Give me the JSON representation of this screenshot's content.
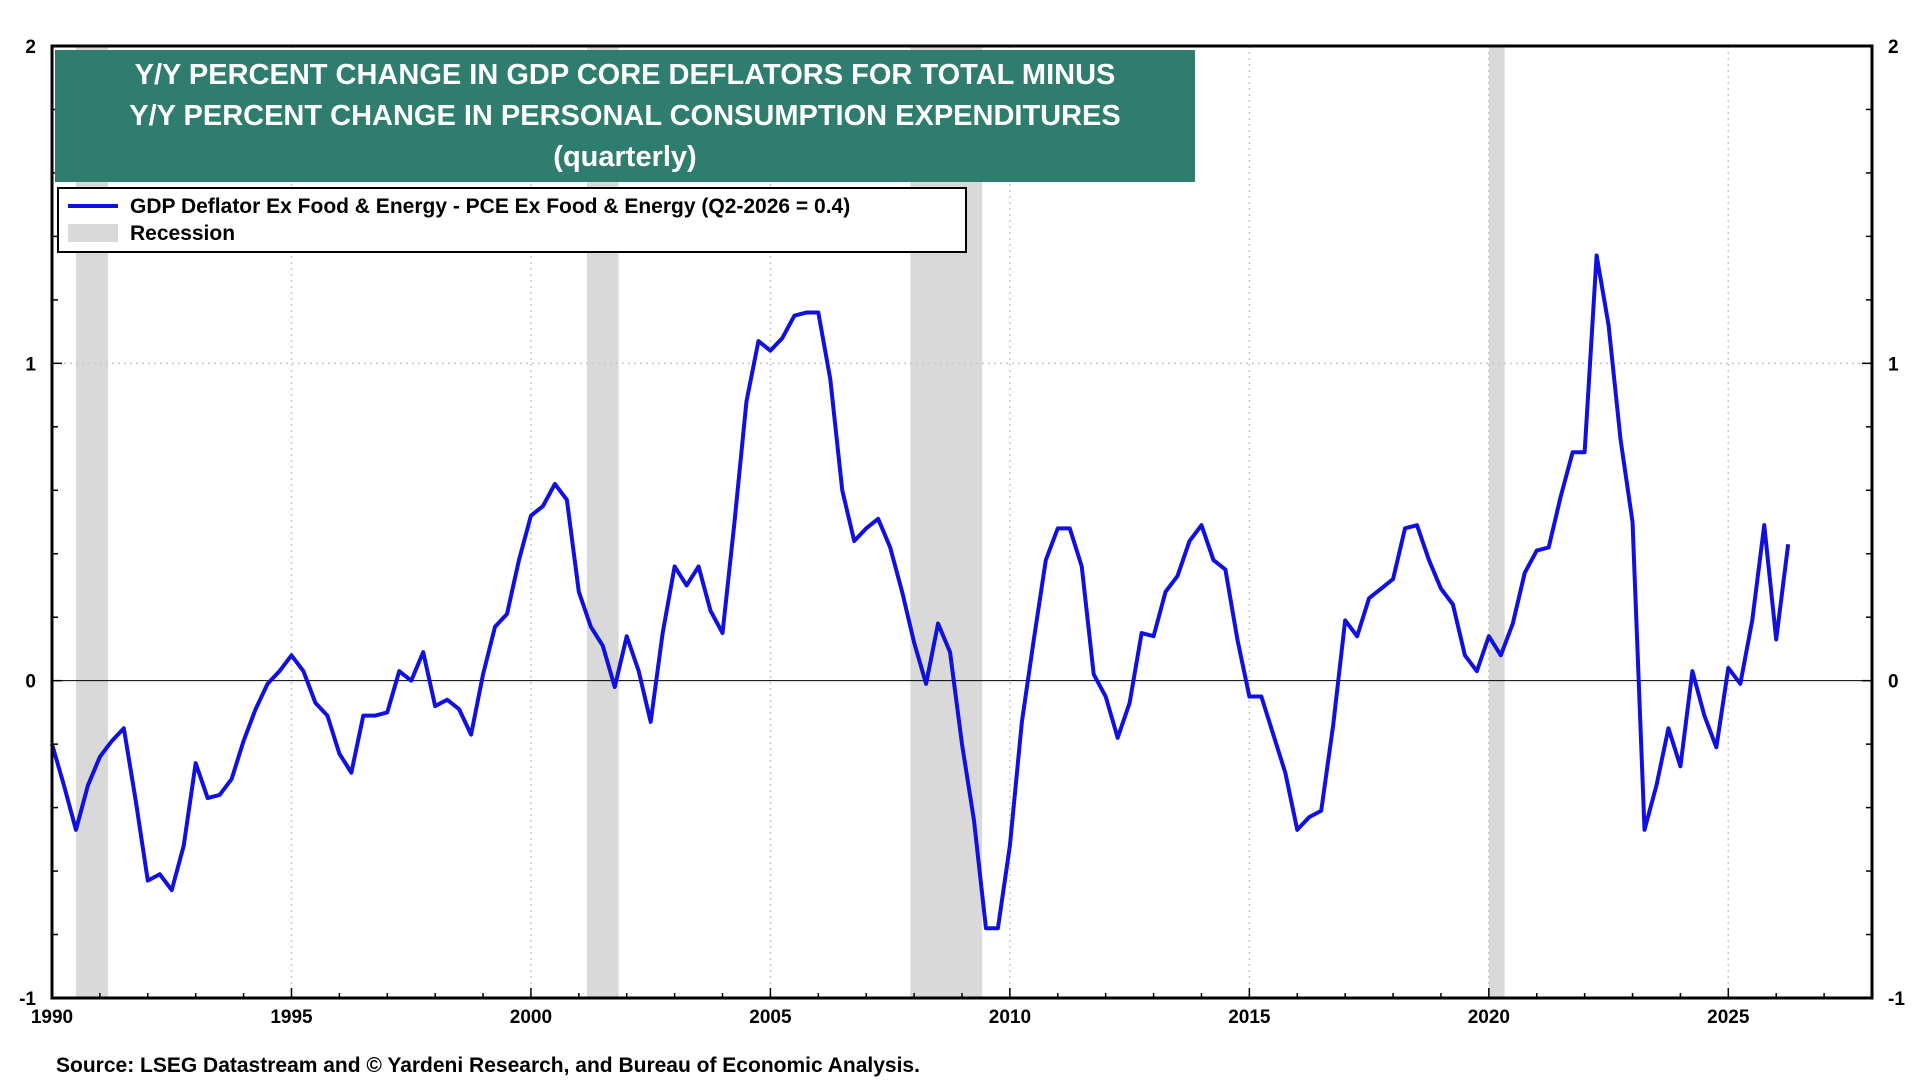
{
  "colors": {
    "title_bg": "#2e7d6f",
    "title_text": "#ffffff",
    "series_line": "#1010e0",
    "recession_fill": "#d9d9d9",
    "grid": "#c8c8c8",
    "zero_line": "#000000",
    "frame": "#000000"
  },
  "title": {
    "line1": "Y/Y PERCENT CHANGE IN GDP CORE DEFLATORS FOR TOTAL MINUS",
    "line2": "Y/Y PERCENT CHANGE IN PERSONAL CONSUMPTION EXPENDITURES",
    "line3": "(quarterly)"
  },
  "legend": {
    "series_label": "GDP Deflator Ex Food & Energy - PCE Ex Food & Energy (Q2-2026 = 0.4)",
    "recession_label": "Recession"
  },
  "source": "Source: LSEG Datastream and © Yardeni Research, and Bureau of Economic Analysis.",
  "chart_data": {
    "type": "line",
    "xlim": [
      1990.0,
      2028.0
    ],
    "ylim": [
      -1,
      2
    ],
    "x_ticks": [
      1990,
      1995,
      2000,
      2005,
      2010,
      2015,
      2020,
      2025
    ],
    "y_ticks_left": [
      "2",
      "1",
      "0",
      "-1"
    ],
    "y_ticks_right": [
      "2",
      "1",
      "0",
      "-1"
    ],
    "y_tick_values": [
      2,
      1,
      0,
      -1
    ],
    "grid": true,
    "legend_position": "top-left",
    "recessions": [
      [
        1990.5,
        1991.17
      ],
      [
        2001.17,
        2001.83
      ],
      [
        2007.92,
        2009.42
      ],
      [
        2020.0,
        2020.33
      ]
    ],
    "series": [
      {
        "name": "GDP Deflator Ex Food & Energy - PCE Ex Food & Energy (Q2-2026 = 0.4)",
        "points": [
          [
            1990.0,
            -0.2
          ],
          [
            1990.25,
            -0.33
          ],
          [
            1990.5,
            -0.47
          ],
          [
            1990.75,
            -0.33
          ],
          [
            1991.0,
            -0.24
          ],
          [
            1991.25,
            -0.19
          ],
          [
            1991.5,
            -0.15
          ],
          [
            1991.75,
            -0.38
          ],
          [
            1992.0,
            -0.63
          ],
          [
            1992.25,
            -0.61
          ],
          [
            1992.5,
            -0.66
          ],
          [
            1992.75,
            -0.52
          ],
          [
            1993.0,
            -0.26
          ],
          [
            1993.25,
            -0.37
          ],
          [
            1993.5,
            -0.36
          ],
          [
            1993.75,
            -0.31
          ],
          [
            1994.0,
            -0.19
          ],
          [
            1994.25,
            -0.09
          ],
          [
            1994.5,
            -0.01
          ],
          [
            1994.75,
            0.03
          ],
          [
            1995.0,
            0.08
          ],
          [
            1995.25,
            0.03
          ],
          [
            1995.5,
            -0.07
          ],
          [
            1995.75,
            -0.11
          ],
          [
            1996.0,
            -0.23
          ],
          [
            1996.25,
            -0.29
          ],
          [
            1996.5,
            -0.11
          ],
          [
            1996.75,
            -0.11
          ],
          [
            1997.0,
            -0.1
          ],
          [
            1997.25,
            0.03
          ],
          [
            1997.5,
            0.0
          ],
          [
            1997.75,
            0.09
          ],
          [
            1998.0,
            -0.08
          ],
          [
            1998.25,
            -0.06
          ],
          [
            1998.5,
            -0.09
          ],
          [
            1998.75,
            -0.17
          ],
          [
            1999.0,
            0.02
          ],
          [
            1999.25,
            0.17
          ],
          [
            1999.5,
            0.21
          ],
          [
            1999.75,
            0.38
          ],
          [
            2000.0,
            0.52
          ],
          [
            2000.25,
            0.55
          ],
          [
            2000.5,
            0.62
          ],
          [
            2000.75,
            0.57
          ],
          [
            2001.0,
            0.28
          ],
          [
            2001.25,
            0.17
          ],
          [
            2001.5,
            0.11
          ],
          [
            2001.75,
            -0.02
          ],
          [
            2002.0,
            0.14
          ],
          [
            2002.25,
            0.03
          ],
          [
            2002.5,
            -0.13
          ],
          [
            2002.75,
            0.15
          ],
          [
            2003.0,
            0.36
          ],
          [
            2003.25,
            0.3
          ],
          [
            2003.5,
            0.36
          ],
          [
            2003.75,
            0.22
          ],
          [
            2004.0,
            0.15
          ],
          [
            2004.25,
            0.5
          ],
          [
            2004.5,
            0.88
          ],
          [
            2004.75,
            1.07
          ],
          [
            2005.0,
            1.04
          ],
          [
            2005.25,
            1.08
          ],
          [
            2005.5,
            1.15
          ],
          [
            2005.75,
            1.16
          ],
          [
            2006.0,
            1.16
          ],
          [
            2006.25,
            0.95
          ],
          [
            2006.5,
            0.6
          ],
          [
            2006.75,
            0.44
          ],
          [
            2007.0,
            0.48
          ],
          [
            2007.25,
            0.51
          ],
          [
            2007.5,
            0.42
          ],
          [
            2007.75,
            0.28
          ],
          [
            2008.0,
            0.12
          ],
          [
            2008.25,
            -0.01
          ],
          [
            2008.5,
            0.18
          ],
          [
            2008.75,
            0.09
          ],
          [
            2009.0,
            -0.2
          ],
          [
            2009.25,
            -0.44
          ],
          [
            2009.5,
            -0.78
          ],
          [
            2009.75,
            -0.78
          ],
          [
            2010.0,
            -0.52
          ],
          [
            2010.25,
            -0.13
          ],
          [
            2010.5,
            0.13
          ],
          [
            2010.75,
            0.38
          ],
          [
            2011.0,
            0.48
          ],
          [
            2011.25,
            0.48
          ],
          [
            2011.5,
            0.36
          ],
          [
            2011.75,
            0.02
          ],
          [
            2012.0,
            -0.05
          ],
          [
            2012.25,
            -0.18
          ],
          [
            2012.5,
            -0.07
          ],
          [
            2012.75,
            0.15
          ],
          [
            2013.0,
            0.14
          ],
          [
            2013.25,
            0.28
          ],
          [
            2013.5,
            0.33
          ],
          [
            2013.75,
            0.44
          ],
          [
            2014.0,
            0.49
          ],
          [
            2014.25,
            0.38
          ],
          [
            2014.5,
            0.35
          ],
          [
            2014.75,
            0.13
          ],
          [
            2015.0,
            -0.05
          ],
          [
            2015.25,
            -0.05
          ],
          [
            2015.5,
            -0.17
          ],
          [
            2015.75,
            -0.29
          ],
          [
            2016.0,
            -0.47
          ],
          [
            2016.25,
            -0.43
          ],
          [
            2016.5,
            -0.41
          ],
          [
            2016.75,
            -0.14
          ],
          [
            2017.0,
            0.19
          ],
          [
            2017.25,
            0.14
          ],
          [
            2017.5,
            0.26
          ],
          [
            2017.75,
            0.29
          ],
          [
            2018.0,
            0.32
          ],
          [
            2018.25,
            0.48
          ],
          [
            2018.5,
            0.49
          ],
          [
            2018.75,
            0.38
          ],
          [
            2019.0,
            0.29
          ],
          [
            2019.25,
            0.24
          ],
          [
            2019.5,
            0.08
          ],
          [
            2019.75,
            0.03
          ],
          [
            2020.0,
            0.14
          ],
          [
            2020.25,
            0.08
          ],
          [
            2020.5,
            0.18
          ],
          [
            2020.75,
            0.34
          ],
          [
            2021.0,
            0.41
          ],
          [
            2021.25,
            0.42
          ],
          [
            2021.5,
            0.58
          ],
          [
            2021.75,
            0.72
          ],
          [
            2022.0,
            0.72
          ],
          [
            2022.25,
            1.34
          ],
          [
            2022.5,
            1.12
          ],
          [
            2022.75,
            0.76
          ],
          [
            2023.0,
            0.5
          ],
          [
            2023.25,
            -0.47
          ],
          [
            2023.5,
            -0.33
          ],
          [
            2023.75,
            -0.15
          ],
          [
            2024.0,
            -0.27
          ],
          [
            2024.25,
            0.03
          ],
          [
            2024.5,
            -0.11
          ],
          [
            2024.75,
            -0.21
          ],
          [
            2025.0,
            0.04
          ],
          [
            2025.25,
            -0.01
          ],
          [
            2025.5,
            0.19
          ],
          [
            2025.75,
            0.49
          ],
          [
            2026.0,
            0.13
          ],
          [
            2026.25,
            0.43
          ]
        ]
      }
    ]
  }
}
